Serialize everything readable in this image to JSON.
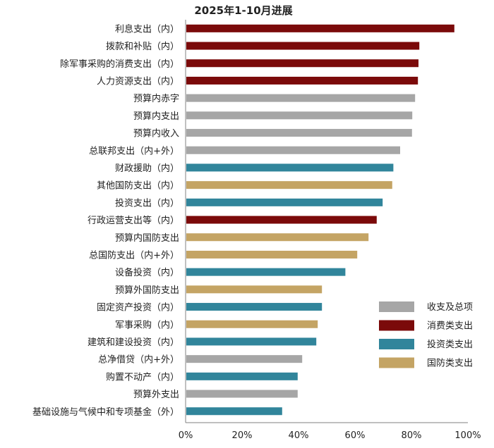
{
  "chart_data": {
    "type": "bar",
    "orientation": "horizontal",
    "title": "2025年1-10月进展",
    "xlim": [
      0,
      100
    ],
    "xticks": [
      "0%",
      "20%",
      "40%",
      "60%",
      "80%",
      "100%"
    ],
    "tick_values": [
      0,
      20,
      40,
      60,
      80,
      100
    ],
    "grid": false,
    "legend_position": "right",
    "legend": [
      {
        "key": "total",
        "label": "收支及总项",
        "color": "#A6A6A6"
      },
      {
        "key": "consumption",
        "label": "消费类支出",
        "color": "#7B0A0A"
      },
      {
        "key": "investment",
        "label": "投资类支出",
        "color": "#31859B"
      },
      {
        "key": "defense",
        "label": "国防类支出",
        "color": "#C4A464"
      }
    ],
    "bars": [
      {
        "label": "利息支出（内）",
        "value": 95.2,
        "group": "consumption"
      },
      {
        "label": "拨款和补贴（内）",
        "value": 82.8,
        "group": "consumption"
      },
      {
        "label": "除军事采购的消费支出（内）",
        "value": 82.5,
        "group": "consumption"
      },
      {
        "label": "人力资源支出（内）",
        "value": 82.3,
        "group": "consumption"
      },
      {
        "label": "预算内赤字",
        "value": 81.3,
        "group": "total"
      },
      {
        "label": "预算内支出",
        "value": 80.3,
        "group": "total"
      },
      {
        "label": "预算内收入",
        "value": 80.2,
        "group": "total"
      },
      {
        "label": "总联邦支出（内+外）",
        "value": 76.0,
        "group": "total"
      },
      {
        "label": "财政援助（内）",
        "value": 73.6,
        "group": "investment"
      },
      {
        "label": "其他国防支出（内）",
        "value": 73.2,
        "group": "defense"
      },
      {
        "label": "投资支出（内）",
        "value": 69.8,
        "group": "investment"
      },
      {
        "label": "行政运营支出等（内）",
        "value": 67.7,
        "group": "consumption"
      },
      {
        "label": "预算内国防支出",
        "value": 64.8,
        "group": "defense"
      },
      {
        "label": "总国防支出（内+外）",
        "value": 60.8,
        "group": "defense"
      },
      {
        "label": "设备投资（内）",
        "value": 56.6,
        "group": "investment"
      },
      {
        "label": "预算外国防支出",
        "value": 48.3,
        "group": "defense"
      },
      {
        "label": "固定资产投资（内）",
        "value": 48.3,
        "group": "investment"
      },
      {
        "label": "军事采购（内）",
        "value": 46.8,
        "group": "defense"
      },
      {
        "label": "建筑和建设投资（内）",
        "value": 46.3,
        "group": "investment"
      },
      {
        "label": "总净借贷（内+外）",
        "value": 41.3,
        "group": "total"
      },
      {
        "label": "购置不动产（内）",
        "value": 39.7,
        "group": "investment"
      },
      {
        "label": "预算外支出",
        "value": 39.7,
        "group": "total"
      },
      {
        "label": "基础设施与气候中和专项基金（外）",
        "value": 34.2,
        "group": "investment"
      }
    ]
  }
}
